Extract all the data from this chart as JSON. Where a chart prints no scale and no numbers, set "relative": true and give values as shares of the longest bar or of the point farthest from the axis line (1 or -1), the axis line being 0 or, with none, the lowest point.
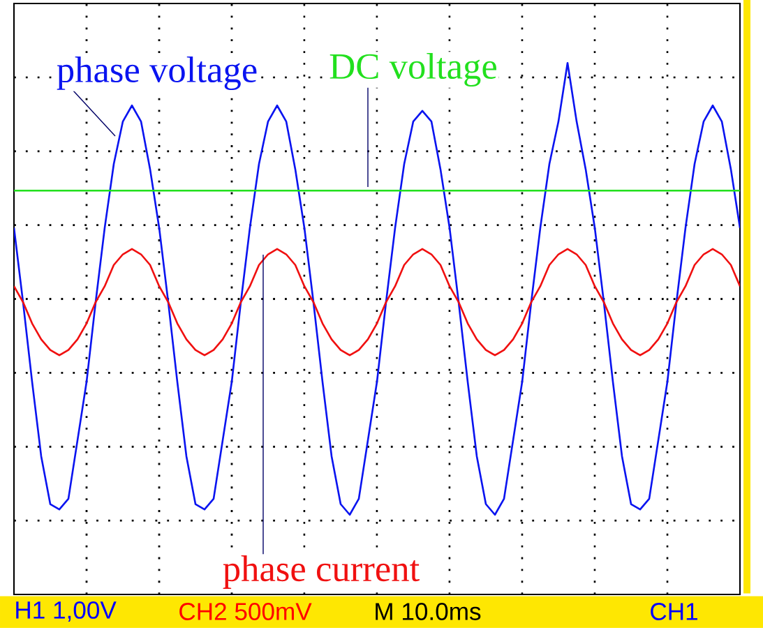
{
  "chart_data": {
    "type": "line",
    "relative": true,
    "grid": true,
    "legend": false,
    "line_style": "solid",
    "marker": "none",
    "categories": [
      null,
      null,
      null,
      null,
      null,
      null,
      null,
      null,
      null,
      null,
      null,
      null,
      null,
      null,
      null,
      null,
      null,
      null,
      null,
      null,
      null,
      null,
      null,
      null,
      null,
      null,
      null,
      null,
      null,
      null,
      null,
      null,
      null,
      null,
      null,
      null,
      null,
      null,
      null,
      null,
      null,
      null,
      null,
      null,
      null,
      null,
      null,
      null,
      null,
      null,
      null,
      null,
      null,
      null,
      null,
      null,
      null,
      null,
      null,
      null,
      null,
      null,
      null,
      null,
      null,
      null,
      null,
      null,
      null,
      null,
      null,
      null,
      null,
      null,
      null,
      null,
      null,
      null,
      null,
      null,
      null
    ],
    "series": [
      {
        "name": "phase voltage",
        "color": "#0a14f0",
        "values": [
          0.69,
          0.55,
          0.4,
          0.26,
          0.17,
          0.16,
          0.18,
          0.29,
          0.4,
          0.55,
          0.69,
          0.81,
          0.89,
          0.92,
          0.89,
          0.8,
          0.69,
          0.55,
          0.4,
          0.26,
          0.17,
          0.16,
          0.18,
          0.29,
          0.4,
          0.55,
          0.69,
          0.81,
          0.89,
          0.92,
          0.89,
          0.8,
          0.69,
          0.55,
          0.4,
          0.26,
          0.17,
          0.15,
          0.18,
          0.29,
          0.4,
          0.55,
          0.69,
          0.81,
          0.89,
          0.91,
          0.89,
          0.8,
          0.69,
          0.55,
          0.4,
          0.26,
          0.17,
          0.15,
          0.18,
          0.29,
          0.4,
          0.55,
          0.69,
          0.81,
          0.89,
          1.0,
          0.89,
          0.8,
          0.69,
          0.55,
          0.4,
          0.26,
          0.17,
          0.16,
          0.18,
          0.29,
          0.4,
          0.55,
          0.69,
          0.81,
          0.89,
          0.92,
          0.89,
          0.8,
          0.69
        ]
      },
      {
        "name": "DC voltage",
        "color": "#22e01e",
        "values": [
          0.76,
          0.76,
          0.76,
          0.76,
          0.76,
          0.76,
          0.76,
          0.76,
          0.76,
          0.76,
          0.76,
          0.76,
          0.76,
          0.76,
          0.76,
          0.76,
          0.76,
          0.76,
          0.76,
          0.76,
          0.76,
          0.76,
          0.76,
          0.76,
          0.76,
          0.76,
          0.76,
          0.76,
          0.76,
          0.76,
          0.76,
          0.76,
          0.76,
          0.76,
          0.76,
          0.76,
          0.76,
          0.76,
          0.76,
          0.76,
          0.76,
          0.76,
          0.76,
          0.76,
          0.76,
          0.76,
          0.76,
          0.76,
          0.76,
          0.76,
          0.76,
          0.76,
          0.76,
          0.76,
          0.76,
          0.76,
          0.76,
          0.76,
          0.76,
          0.76,
          0.76,
          0.76,
          0.76,
          0.76,
          0.76,
          0.76,
          0.76,
          0.76,
          0.76,
          0.76,
          0.76,
          0.76,
          0.76,
          0.76,
          0.76,
          0.76,
          0.76,
          0.76,
          0.76,
          0.76,
          0.76
        ]
      },
      {
        "name": "phase current",
        "color": "#f01010",
        "values": [
          0.58,
          0.55,
          0.51,
          0.48,
          0.46,
          0.45,
          0.46,
          0.48,
          0.51,
          0.55,
          0.58,
          0.62,
          0.64,
          0.65,
          0.64,
          0.62,
          0.58,
          0.55,
          0.51,
          0.48,
          0.46,
          0.45,
          0.46,
          0.48,
          0.51,
          0.55,
          0.58,
          0.62,
          0.64,
          0.65,
          0.64,
          0.62,
          0.58,
          0.55,
          0.51,
          0.48,
          0.46,
          0.45,
          0.46,
          0.48,
          0.51,
          0.55,
          0.58,
          0.62,
          0.64,
          0.65,
          0.64,
          0.62,
          0.58,
          0.55,
          0.51,
          0.48,
          0.46,
          0.45,
          0.46,
          0.48,
          0.51,
          0.55,
          0.58,
          0.62,
          0.64,
          0.65,
          0.64,
          0.62,
          0.58,
          0.55,
          0.51,
          0.48,
          0.46,
          0.45,
          0.46,
          0.48,
          0.51,
          0.55,
          0.58,
          0.62,
          0.64,
          0.65,
          0.64,
          0.62,
          0.58
        ]
      }
    ],
    "annotations": [
      "H1 1,00V",
      "CH2 500mV",
      "M 10.0ms",
      "CH1"
    ]
  }
}
